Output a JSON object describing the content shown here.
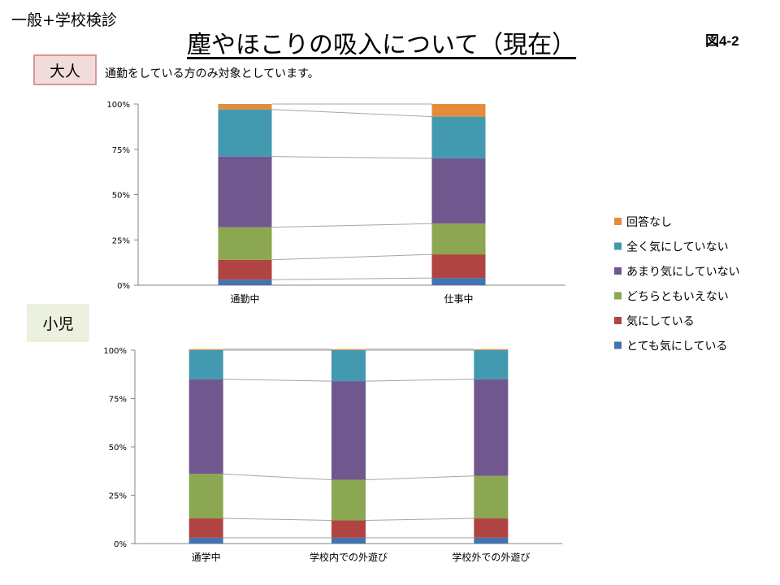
{
  "header": {
    "label": "一般+学校検診",
    "title": "塵やほこりの吸入について（現在）",
    "figure_number": "図4-2"
  },
  "sections": {
    "adult_label": "大人",
    "adult_note": "通勤をしている方のみ対象としています。",
    "child_label": "小児"
  },
  "legend": {
    "items": [
      {
        "label": "回答なし",
        "color": "#e48c3d"
      },
      {
        "label": "全く気にしていない",
        "color": "#4299b0"
      },
      {
        "label": "あまり気にしていない",
        "color": "#70588f"
      },
      {
        "label": "どちらともいえない",
        "color": "#8ba751"
      },
      {
        "label": "気にしている",
        "color": "#b04442"
      },
      {
        "label": "とても気にしている",
        "color": "#4373b0"
      }
    ]
  },
  "chart_data": [
    {
      "type": "bar",
      "stacked": true,
      "percent_stacked": true,
      "categories": [
        "通勤中",
        "仕事中"
      ],
      "y_ticks": [
        "0%",
        "25%",
        "50%",
        "75%",
        "100%"
      ],
      "ylim": [
        0,
        100
      ],
      "series_lines": true,
      "series": [
        {
          "name": "とても気にしている",
          "values": [
            3,
            4
          ]
        },
        {
          "name": "気にしている",
          "values": [
            11,
            13
          ]
        },
        {
          "name": "どちらともいえない",
          "values": [
            18,
            17
          ]
        },
        {
          "name": "あまり気にしていない",
          "values": [
            39,
            36
          ]
        },
        {
          "name": "全く気にしていない",
          "values": [
            26,
            23
          ]
        },
        {
          "name": "回答なし",
          "values": [
            3,
            7
          ]
        }
      ]
    },
    {
      "type": "bar",
      "stacked": true,
      "percent_stacked": true,
      "categories": [
        "通学中",
        "学校内での外遊び",
        "学校外での外遊び"
      ],
      "y_ticks": [
        "0%",
        "25%",
        "50%",
        "75%",
        "100%"
      ],
      "ylim": [
        0,
        100
      ],
      "series_lines": true,
      "series": [
        {
          "name": "とても気にしている",
          "values": [
            3,
            3,
            3
          ]
        },
        {
          "name": "気にしている",
          "values": [
            10,
            9,
            10
          ]
        },
        {
          "name": "どちらともいえない",
          "values": [
            23,
            21,
            22
          ]
        },
        {
          "name": "あまり気にしていない",
          "values": [
            49,
            51,
            50
          ]
        },
        {
          "name": "全く気にしていない",
          "values": [
            15,
            16,
            15
          ]
        },
        {
          "name": "回答なし",
          "values": [
            0.5,
            0.5,
            0.5
          ]
        }
      ]
    }
  ]
}
